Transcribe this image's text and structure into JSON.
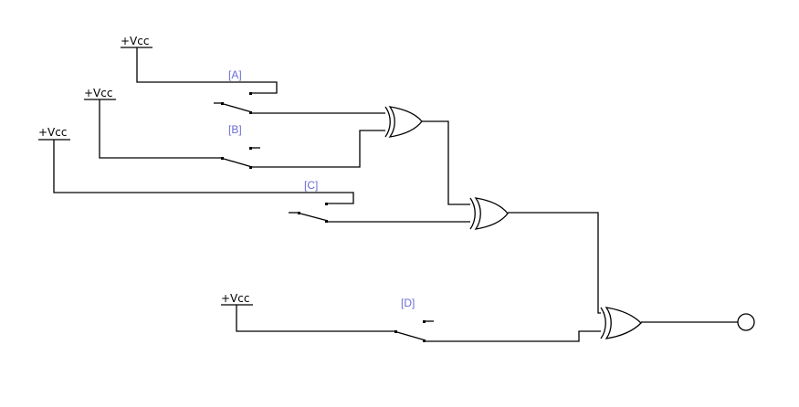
{
  "diagram": {
    "supply_label": "+Vcc",
    "switches": [
      {
        "id": "A",
        "label": "[A]"
      },
      {
        "id": "B",
        "label": "[B]"
      },
      {
        "id": "C",
        "label": "[C]"
      },
      {
        "id": "D",
        "label": "[D]"
      }
    ],
    "gates": [
      {
        "type": "XOR",
        "inputs": [
          "A",
          "B"
        ]
      },
      {
        "type": "XOR",
        "inputs": [
          "XOR1",
          "C"
        ]
      },
      {
        "type": "XOR",
        "inputs": [
          "XOR2",
          "D"
        ]
      }
    ],
    "output": {
      "shape": "circle"
    }
  }
}
